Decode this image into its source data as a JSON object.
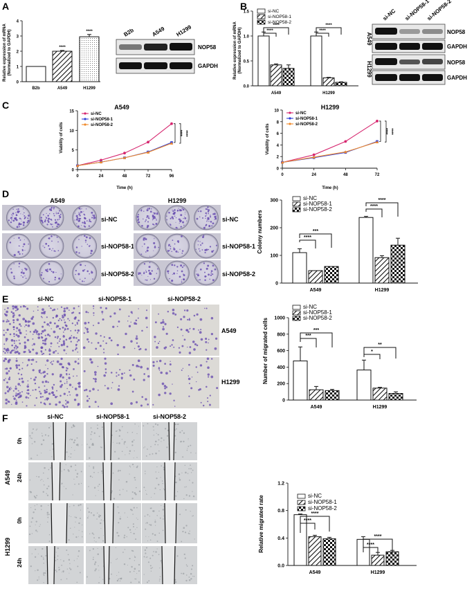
{
  "panels": {
    "A": {
      "letter": "A",
      "chart": {
        "ylabel_1": "Relative expression of mRNA",
        "ylabel_2": "(Normalized to GAPDH)",
        "yticks": [
          "0",
          "1",
          "2",
          "3",
          "4"
        ],
        "categories": [
          "B2b",
          "A549",
          "H1299"
        ],
        "sig": [
          "",
          "****",
          "****"
        ]
      },
      "blot": {
        "lanes": [
          "B2b",
          "A549",
          "H1299"
        ],
        "rows": [
          "NOP58",
          "GAPDH"
        ]
      }
    },
    "B": {
      "letter": "B",
      "chart": {
        "ylabel_1": "Relative expression of mRNA",
        "ylabel_2": "(Normalized to GAPDH)",
        "yticks": [
          "0.0",
          "0.5",
          "1.0",
          "1.5"
        ],
        "legend": [
          "si-NC",
          "si-NOP58-1",
          "si-NOP58-2"
        ],
        "groups": [
          "A549",
          "H1299"
        ],
        "sig": "****"
      },
      "blot": {
        "lanes": [
          "si-NC",
          "si-NOP58-1",
          "si-NOP58-2"
        ],
        "cells": [
          "A549",
          "H1299"
        ],
        "rows": [
          "NOP58",
          "GAPDH",
          "NOP58",
          "GAPDH"
        ]
      }
    },
    "C": {
      "letter": "C",
      "left": {
        "title": "A549",
        "yticks": [
          "0",
          "5",
          "10",
          "15"
        ],
        "xticks": [
          "0",
          "24",
          "48",
          "72",
          "96"
        ]
      },
      "right": {
        "title": "H1299",
        "yticks": [
          "0",
          "2",
          "4",
          "6",
          "8",
          "10"
        ],
        "xticks": [
          "0",
          "24",
          "48",
          "72"
        ]
      },
      "xlabel": "Time (h)",
      "ylabel": "Viability of cells",
      "legend": [
        "si-NC",
        "si-NOP58-1",
        "si-NOP58-2"
      ],
      "sig": "****"
    },
    "D": {
      "letter": "D",
      "cols": [
        "A549",
        "H1299"
      ],
      "rows": [
        "si-NC",
        "si-NOP58-1",
        "si-NOP58-2"
      ],
      "chart": {
        "ylabel": "Colony numbers",
        "yticks": [
          "0",
          "100",
          "200",
          "300"
        ],
        "legend": [
          "si-NC",
          "si-NOP58-1",
          "si-NOP58-2"
        ],
        "groups": [
          "A549",
          "H1299"
        ],
        "sig": [
          "****",
          "***",
          "****",
          "****"
        ]
      }
    },
    "E": {
      "letter": "E",
      "cols": [
        "si-NC",
        "si-NOP58-1",
        "si-NOP58-2"
      ],
      "rows": [
        "A549",
        "H1299"
      ],
      "chart": {
        "ylabel": "Number of migrated cells",
        "yticks": [
          "0",
          "200",
          "400",
          "600",
          "800",
          "1000"
        ],
        "legend": [
          "si-NC",
          "si-NOP58-1",
          "si-NOP58-2"
        ],
        "groups": [
          "A549",
          "H1299"
        ],
        "sig": [
          "***",
          "***",
          "*",
          "**"
        ]
      }
    },
    "F": {
      "letter": "F",
      "cols": [
        "si-NC",
        "si-NOP58-1",
        "si-NOP58-2"
      ],
      "cells": [
        "A549",
        "H1299"
      ],
      "times": [
        "0h",
        "24h"
      ],
      "chart": {
        "ylabel": "Relative migrated rate",
        "yticks": [
          "0.0",
          "0.4",
          "0.8",
          "1.2"
        ],
        "legend": [
          "si-NC",
          "si-NOP58-1",
          "si-NOP58-2"
        ],
        "groups": [
          "A549",
          "H1299"
        ],
        "sig": "****"
      }
    }
  },
  "colors": {
    "si_nc": "#d6256e",
    "si_nop58_1": "#2f3fd8",
    "si_nop58_2": "#f08a2c",
    "stain": "#6a4fb0"
  },
  "chart_data": [
    {
      "panel": "A",
      "type": "bar",
      "categories": [
        "B2b",
        "A549",
        "H1299"
      ],
      "values": [
        1.0,
        2.0,
        2.95
      ],
      "errors": [
        0,
        0.05,
        0.15
      ],
      "ylim": [
        0,
        4
      ],
      "ylabel": "Relative expression of mRNA (Normalized to GAPDH)"
    },
    {
      "panel": "B",
      "type": "bar",
      "categories": [
        "A549",
        "H1299"
      ],
      "series": [
        {
          "name": "si-NC",
          "values": [
            1.0,
            1.0
          ],
          "errors": [
            0.08,
            0.08
          ]
        },
        {
          "name": "si-NOP58-1",
          "values": [
            0.42,
            0.16
          ],
          "errors": [
            0.02,
            0.01
          ]
        },
        {
          "name": "si-NOP58-2",
          "values": [
            0.35,
            0.07
          ],
          "errors": [
            0.07,
            0.01
          ]
        }
      ],
      "ylim": [
        0,
        1.5
      ],
      "ylabel": "Relative expression of mRNA (Normalized to GAPDH)"
    },
    {
      "panel": "C-A549",
      "type": "line",
      "title": "A549",
      "x": [
        0,
        24,
        48,
        72,
        96
      ],
      "series": [
        {
          "name": "si-NC",
          "values": [
            1.0,
            2.4,
            4.2,
            7.0,
            11.7
          ]
        },
        {
          "name": "si-NOP58-1",
          "values": [
            1.0,
            1.9,
            3.0,
            4.5,
            6.9
          ]
        },
        {
          "name": "si-NOP58-2",
          "values": [
            1.0,
            1.9,
            3.0,
            4.4,
            6.7
          ]
        }
      ],
      "ylim": [
        0,
        15
      ],
      "xlabel": "Time (h)",
      "ylabel": "Viability of cells"
    },
    {
      "panel": "C-H1299",
      "type": "line",
      "title": "H1299",
      "x": [
        0,
        24,
        48,
        72
      ],
      "series": [
        {
          "name": "si-NC",
          "values": [
            1.0,
            2.3,
            4.6,
            8.1
          ]
        },
        {
          "name": "si-NOP58-1",
          "values": [
            1.0,
            1.8,
            2.7,
            4.6
          ]
        },
        {
          "name": "si-NOP58-2",
          "values": [
            1.0,
            1.9,
            2.8,
            4.5
          ]
        }
      ],
      "ylim": [
        0,
        10
      ],
      "xlabel": "Time (h)",
      "ylabel": "Viability of cells"
    },
    {
      "panel": "D",
      "type": "bar",
      "categories": [
        "A549",
        "H1299"
      ],
      "series": [
        {
          "name": "si-NC",
          "values": [
            110,
            237
          ],
          "errors": [
            14,
            4
          ]
        },
        {
          "name": "si-NOP58-1",
          "values": [
            45,
            92
          ],
          "errors": [
            0,
            7
          ]
        },
        {
          "name": "si-NOP58-2",
          "values": [
            60,
            137
          ],
          "errors": [
            0,
            25
          ]
        }
      ],
      "ylim": [
        0,
        300
      ],
      "ylabel": "Colony numbers"
    },
    {
      "panel": "E",
      "type": "bar",
      "categories": [
        "A549",
        "H1299"
      ],
      "series": [
        {
          "name": "si-NC",
          "values": [
            475,
            365
          ],
          "errors": [
            170,
            120
          ]
        },
        {
          "name": "si-NOP58-1",
          "values": [
            125,
            145
          ],
          "errors": [
            40,
            10
          ]
        },
        {
          "name": "si-NOP58-2",
          "values": [
            115,
            80
          ],
          "errors": [
            15,
            20
          ]
        }
      ],
      "ylim": [
        0,
        1000
      ],
      "ylabel": "Number of migrated cells"
    },
    {
      "panel": "F",
      "type": "bar",
      "categories": [
        "A549",
        "H1299"
      ],
      "series": [
        {
          "name": "si-NC",
          "values": [
            0.74,
            0.38
          ],
          "errors": [
            0.01,
            0.04
          ]
        },
        {
          "name": "si-NOP58-1",
          "values": [
            0.42,
            0.15
          ],
          "errors": [
            0.02,
            0.04
          ]
        },
        {
          "name": "si-NOP58-2",
          "values": [
            0.39,
            0.2
          ],
          "errors": [
            0.02,
            0.02
          ]
        }
      ],
      "ylim": [
        0,
        1.2
      ],
      "ylabel": "Relative migrated rate"
    }
  ]
}
